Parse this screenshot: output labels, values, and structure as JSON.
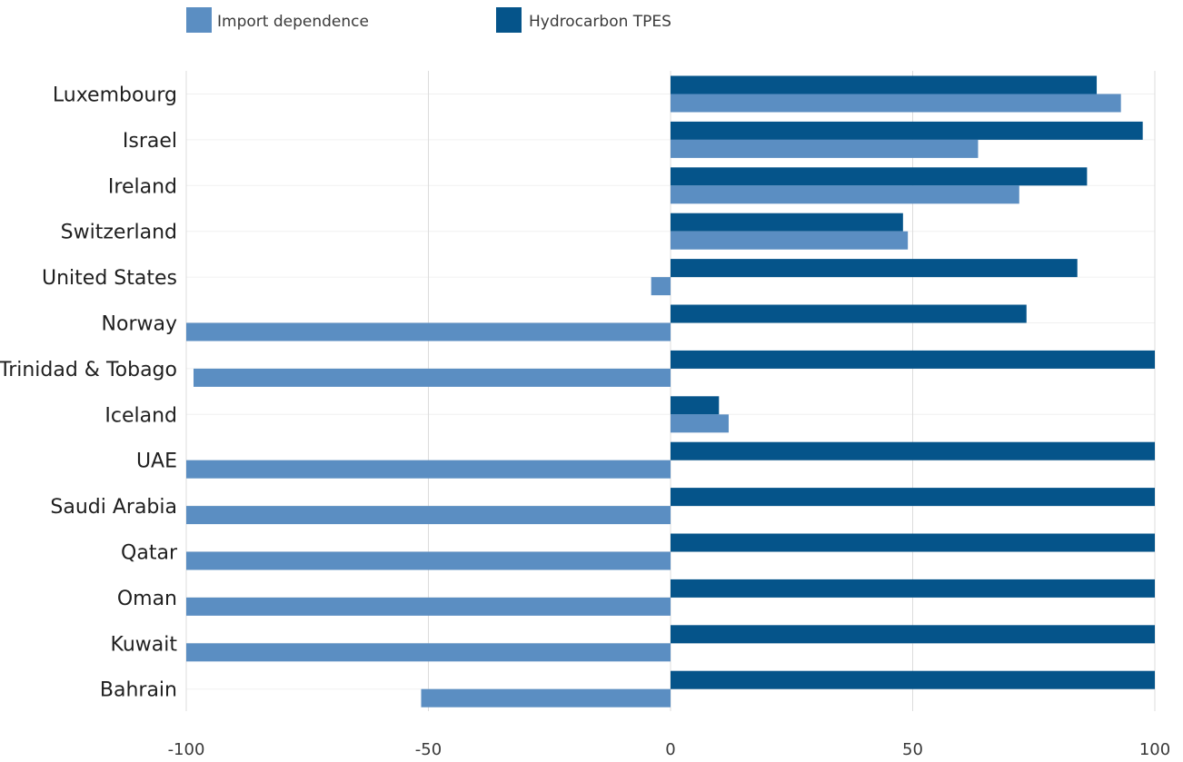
{
  "chart_data": {
    "type": "bar",
    "orientation": "horizontal",
    "categories": [
      "Luxembourg",
      "Israel",
      "Ireland",
      "Switzerland",
      "United States",
      "Norway",
      "Trinidad & Tobago",
      "Iceland",
      "UAE",
      "Saudi Arabia",
      "Qatar",
      "Oman",
      "Kuwait",
      "Bahrain"
    ],
    "series": [
      {
        "name": "Hydrocarbon TPES",
        "color": "#05548a",
        "values": [
          88,
          97.5,
          86,
          48,
          84,
          73.5,
          100,
          10,
          100,
          100,
          100,
          100,
          100,
          100
        ]
      },
      {
        "name": "Import dependence",
        "color": "#5b8ec2",
        "values": [
          93,
          63.5,
          72,
          49,
          -4,
          -100,
          -98.5,
          12,
          -100,
          -100,
          -100,
          -100,
          -100,
          -51.5
        ]
      }
    ],
    "legend": {
      "position": "top-left",
      "entries": [
        {
          "label": "Import dependence",
          "color": "#5b8ec2"
        },
        {
          "label": "Hydrocarbon TPES",
          "color": "#05548a"
        }
      ]
    },
    "xlim": [
      -100,
      100
    ],
    "xticks": [
      "-100",
      "-50",
      "0",
      "50",
      "100"
    ],
    "xtick_values": [
      -100,
      -50,
      0,
      50,
      100
    ],
    "grid": true,
    "title": "",
    "xlabel": "",
    "ylabel": ""
  }
}
